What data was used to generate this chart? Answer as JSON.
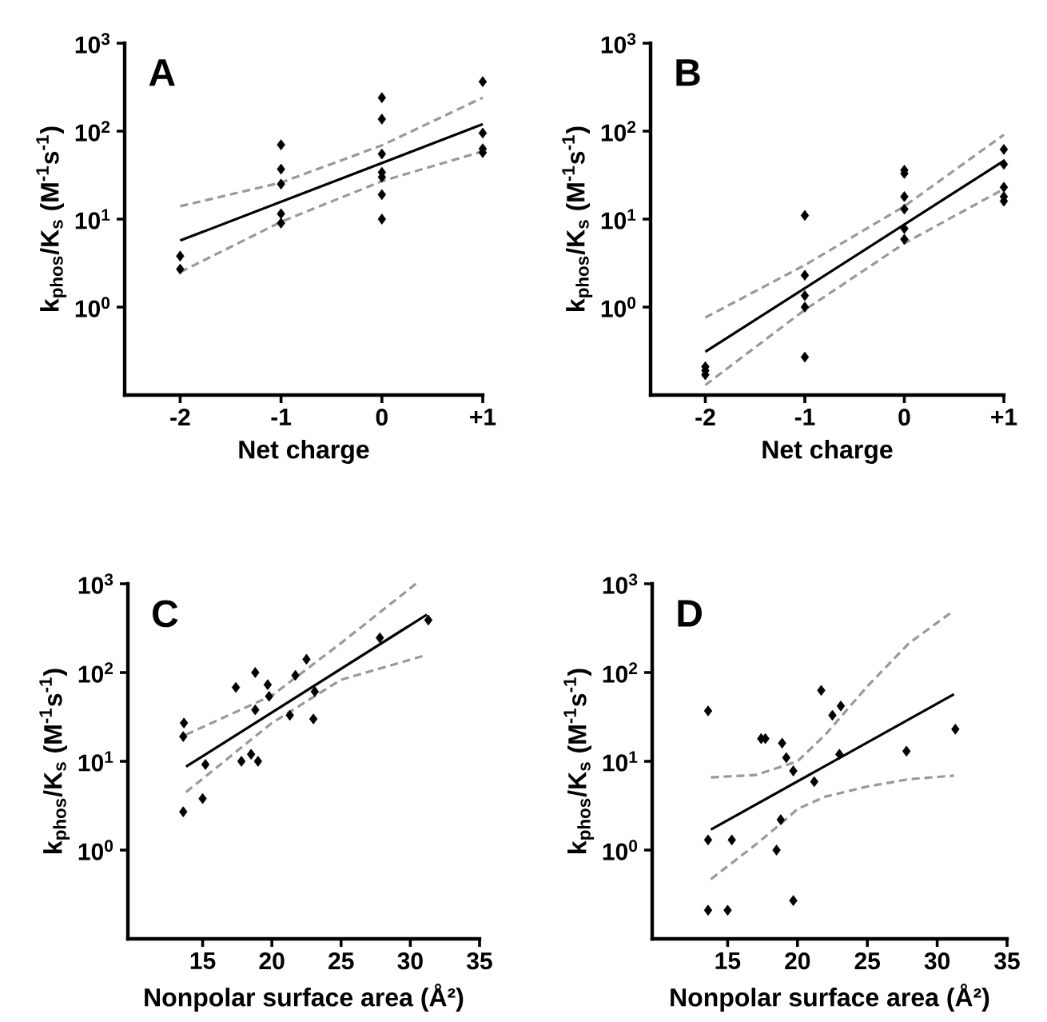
{
  "chart_data": [
    {
      "type": "scatter",
      "xlabel": "Net charge",
      "ylabel": "k$_{phos}$/K$_{s}$ (M$^{-1}$s$^{-1}$)",
      "annotations": [
        "A"
      ],
      "log": "y",
      "xlim": [
        -2.55,
        1
      ],
      "ylim": [
        0.1,
        1000
      ],
      "xticks": [
        -2,
        -1,
        0,
        {
          "value": 1,
          "label": "+1"
        }
      ],
      "yticks": [
        {
          "value": 1,
          "label": "10$^{0}$"
        },
        {
          "value": 10,
          "label": "10$^{1}$"
        },
        {
          "value": 100,
          "label": "10$^{2}$"
        },
        {
          "value": 1000,
          "label": "10$^{3}$"
        }
      ],
      "series": [
        {
          "marker": "diamond",
          "color": "#000000",
          "x": [
            -2,
            -2,
            -1,
            -1,
            -1,
            -1,
            -1,
            0,
            0,
            0,
            0,
            0,
            0,
            0,
            1,
            1,
            1,
            1
          ],
          "values": [
            3.8,
            2.7,
            70,
            37,
            25,
            11.5,
            9,
            240,
            137,
            55,
            34,
            30,
            19,
            10,
            365,
            95,
            63,
            57
          ]
        },
        {
          "type": "line",
          "line_style": "solid",
          "color": "#000000",
          "x": [
            -2,
            1
          ],
          "values": [
            5.7,
            120
          ]
        },
        {
          "type": "line",
          "line_style": "dashed",
          "color": "#999999",
          "x": [
            -2,
            -1,
            0,
            1
          ],
          "values": [
            14,
            26,
            69,
            240
          ]
        },
        {
          "type": "line",
          "line_style": "dashed",
          "color": "#999999",
          "x": [
            -2,
            -1,
            0,
            1
          ],
          "values": [
            2.5,
            9.3,
            27,
            59
          ]
        }
      ]
    },
    {
      "type": "scatter",
      "xlabel": "Net charge",
      "ylabel": "k$_{phos}$/K$_{s}$ (M$^{-1}$s$^{-1}$)",
      "annotations": [
        "B"
      ],
      "log": "y",
      "xlim": [
        -2.55,
        1
      ],
      "ylim": [
        0.1,
        1000
      ],
      "xticks": [
        -2,
        -1,
        0,
        {
          "value": 1,
          "label": "+1"
        }
      ],
      "yticks": [
        {
          "value": 1,
          "label": "10$^{0}$"
        },
        {
          "value": 10,
          "label": "10$^{1}$"
        },
        {
          "value": 100,
          "label": "10$^{2}$"
        },
        {
          "value": 1000,
          "label": "10$^{3}$"
        }
      ],
      "series": [
        {
          "marker": "diamond",
          "color": "#000000",
          "x": [
            -2,
            -2,
            -2,
            -1,
            -1,
            -1,
            -1,
            -1,
            0,
            0,
            0,
            0,
            0,
            0,
            1,
            1,
            1,
            1,
            1
          ],
          "values": [
            0.21,
            0.19,
            0.17,
            11,
            2.3,
            1.35,
            1.0,
            0.27,
            36,
            33,
            18,
            13,
            7.8,
            5.9,
            62,
            42,
            23,
            18,
            16
          ]
        },
        {
          "type": "line",
          "line_style": "solid",
          "color": "#000000",
          "x": [
            -2,
            1
          ],
          "values": [
            0.31,
            46
          ]
        },
        {
          "type": "line",
          "line_style": "dashed",
          "color": "#999999",
          "x": [
            -2,
            -1,
            0,
            1
          ],
          "values": [
            0.76,
            3,
            14,
            91
          ]
        },
        {
          "type": "line",
          "line_style": "dashed",
          "color": "#999999",
          "x": [
            -2,
            -1,
            0,
            1
          ],
          "values": [
            0.13,
            0.93,
            5.3,
            22
          ]
        }
      ]
    },
    {
      "type": "scatter",
      "xlabel": "Nonpolar surface area (Å²)",
      "ylabel": "k$_{phos}$/K$_{s}$ (M$^{-1}$s$^{-1}$)",
      "annotations": [
        "C"
      ],
      "log": "y",
      "xlim": [
        9.6,
        35
      ],
      "ylim": [
        0.1,
        1000
      ],
      "xticks": [
        15,
        20,
        25,
        30,
        35
      ],
      "yticks": [
        {
          "value": 1,
          "label": "10$^{0}$"
        },
        {
          "value": 10,
          "label": "10$^{1}$"
        },
        {
          "value": 100,
          "label": "10$^{2}$"
        },
        {
          "value": 1000,
          "label": "10$^{3}$"
        }
      ],
      "series": [
        {
          "marker": "diamond",
          "color": "#000000",
          "x": [
            13.65,
            13.6,
            13.6,
            15.0,
            15.2,
            17.4,
            17.8,
            18.5,
            18.8,
            18.8,
            19.0,
            19.7,
            19.8,
            21.3,
            21.7,
            22.5,
            23.1,
            23.0,
            27.8,
            31.3
          ],
          "values": [
            27,
            19,
            2.7,
            3.8,
            9.2,
            68,
            10,
            12,
            100,
            38,
            10,
            73,
            54,
            33,
            93,
            141,
            61,
            30,
            246,
            390
          ]
        },
        {
          "type": "line",
          "line_style": "solid",
          "color": "#000000",
          "x": [
            13.8,
            31.2
          ],
          "values": [
            8.7,
            450
          ]
        },
        {
          "type": "line",
          "line_style": "dashed",
          "color": "#999999",
          "x": [
            13.8,
            20,
            25,
            30.4
          ],
          "values": [
            20,
            55,
            215,
            1000
          ]
        },
        {
          "type": "line",
          "line_style": "dashed",
          "color": "#999999",
          "x": [
            13.8,
            20,
            25,
            31.2
          ],
          "values": [
            4.5,
            27,
            83,
            158
          ]
        }
      ]
    },
    {
      "type": "scatter",
      "xlabel": "Nonpolar surface area (Å²)",
      "ylabel": "k$_{phos}$/K$_{s}$ (M$^{-1}$s$^{-1}$)",
      "annotations": [
        "D"
      ],
      "log": "y",
      "xlim": [
        9.6,
        35
      ],
      "ylim": [
        0.1,
        1000
      ],
      "xticks": [
        15,
        20,
        25,
        30,
        35
      ],
      "yticks": [
        {
          "value": 1,
          "label": "10$^{0}$"
        },
        {
          "value": 10,
          "label": "10$^{1}$"
        },
        {
          "value": 100,
          "label": "10$^{2}$"
        },
        {
          "value": 1000,
          "label": "10$^{3}$"
        }
      ],
      "series": [
        {
          "marker": "diamond",
          "color": "#000000",
          "x": [
            13.6,
            13.6,
            13.6,
            15.0,
            15.3,
            17.4,
            17.7,
            18.5,
            18.8,
            18.9,
            19.2,
            19.7,
            19.7,
            21.2,
            21.7,
            22.5,
            23.1,
            23.0,
            27.8,
            31.3
          ],
          "values": [
            37,
            1.3,
            0.21,
            0.21,
            1.3,
            18,
            18,
            1.0,
            2.2,
            16,
            11,
            7.8,
            0.27,
            5.9,
            63,
            33,
            42,
            12,
            13,
            23
          ]
        },
        {
          "type": "line",
          "line_style": "solid",
          "color": "#000000",
          "x": [
            13.8,
            31.2
          ],
          "values": [
            1.7,
            57
          ]
        },
        {
          "type": "line",
          "line_style": "dashed",
          "color": "#999999",
          "x": [
            13.8,
            17,
            20,
            22,
            25,
            28,
            31.2
          ],
          "values": [
            6.6,
            7,
            10,
            20,
            70,
            215,
            500
          ]
        },
        {
          "type": "line",
          "line_style": "dashed",
          "color": "#999999",
          "x": [
            13.8,
            17,
            19,
            20,
            22,
            25,
            28,
            31.2
          ],
          "values": [
            0.47,
            1.15,
            2.1,
            2.9,
            4.0,
            5.2,
            6.3,
            6.9
          ]
        }
      ]
    }
  ]
}
